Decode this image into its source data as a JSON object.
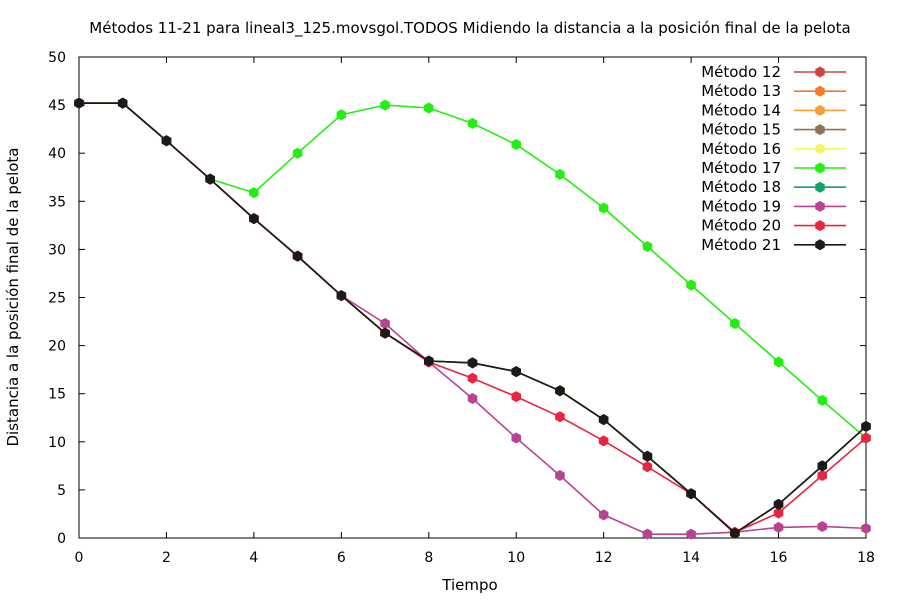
{
  "chart_data": {
    "type": "line",
    "title": "Métodos 11-21 para lineal3_125.movsgol.TODOS Midiendo la distancia a la posición final de la pelota",
    "xlabel": "Tiempo",
    "ylabel": "Distancia a la posición final de la pelota",
    "xlim": [
      0,
      18
    ],
    "ylim": [
      0,
      50
    ],
    "xticks": [
      0,
      2,
      4,
      6,
      8,
      10,
      12,
      14,
      16,
      18
    ],
    "yticks": [
      0,
      5,
      10,
      15,
      20,
      25,
      30,
      35,
      40,
      45,
      50
    ],
    "grid": false,
    "legend_position": "top-right",
    "x": [
      0,
      1,
      2,
      3,
      4,
      5,
      6,
      7,
      8,
      9,
      10,
      11,
      12,
      13,
      14,
      15,
      16,
      17,
      18
    ],
    "series": [
      {
        "name": "Método 12",
        "color": "#c8473e",
        "values": [
          45.2,
          45.2,
          41.3,
          37.3,
          33.2,
          29.3,
          25.2,
          21.3,
          18.4,
          18.2,
          17.3,
          15.3,
          12.3,
          8.5,
          4.6,
          0.5,
          3.5,
          7.5,
          11.6
        ]
      },
      {
        "name": "Método 13",
        "color": "#f07c2a",
        "values": [
          45.2,
          45.2,
          41.3,
          37.3,
          33.2,
          29.3,
          25.2,
          21.3,
          18.4,
          18.2,
          17.3,
          15.3,
          12.3,
          8.5,
          4.6,
          0.5,
          3.5,
          7.5,
          11.6
        ]
      },
      {
        "name": "Método 14",
        "color": "#f59d36",
        "values": [
          45.2,
          45.2,
          41.3,
          37.3,
          33.2,
          29.3,
          25.2,
          21.3,
          18.4,
          18.2,
          17.3,
          15.3,
          12.3,
          8.5,
          4.6,
          0.5,
          3.5,
          7.5,
          11.6
        ]
      },
      {
        "name": "Método 15",
        "color": "#8b7355",
        "values": [
          45.2,
          45.2,
          41.3,
          37.3,
          33.2,
          29.3,
          25.2,
          21.3,
          18.4,
          18.2,
          17.3,
          15.3,
          12.3,
          8.5,
          4.6,
          0.5,
          3.5,
          7.5,
          11.6
        ]
      },
      {
        "name": "Método 16",
        "color": "#f5f56a",
        "values": [
          45.2,
          45.2,
          41.3,
          37.3,
          33.2,
          29.3,
          25.2,
          21.3,
          18.4,
          18.2,
          17.3,
          15.3,
          12.3,
          8.5,
          4.6,
          0.5,
          3.5,
          7.5,
          11.6
        ]
      },
      {
        "name": "Método 17",
        "color": "#22ee11",
        "values": [
          45.2,
          45.2,
          41.3,
          37.3,
          35.9,
          40.0,
          44.0,
          45.0,
          44.7,
          43.1,
          40.9,
          37.8,
          34.3,
          30.3,
          26.3,
          22.3,
          18.3,
          14.3,
          10.4
        ]
      },
      {
        "name": "Método 18",
        "color": "#12a36b",
        "values": [
          45.2,
          45.2,
          41.3,
          37.3,
          33.2,
          29.3,
          25.2,
          21.3,
          18.4,
          18.2,
          17.3,
          15.3,
          12.3,
          8.5,
          4.6,
          0.5,
          3.5,
          7.5,
          11.6
        ]
      },
      {
        "name": "Método 19",
        "color": "#b94393",
        "values": [
          45.2,
          45.2,
          41.3,
          37.3,
          33.2,
          29.3,
          25.2,
          22.3,
          18.3,
          14.5,
          10.4,
          6.5,
          2.4,
          0.4,
          0.4,
          0.6,
          1.1,
          1.2,
          1.0
        ]
      },
      {
        "name": "Método 20",
        "color": "#e8243f",
        "values": [
          45.2,
          45.2,
          41.3,
          37.3,
          33.2,
          29.3,
          25.2,
          21.3,
          18.3,
          16.6,
          14.7,
          12.6,
          10.1,
          7.4,
          4.6,
          0.6,
          2.6,
          6.5,
          10.4
        ]
      },
      {
        "name": "Método 21",
        "color": "#1a1a1a",
        "values": [
          45.2,
          45.2,
          41.3,
          37.3,
          33.2,
          29.3,
          25.2,
          21.3,
          18.4,
          18.2,
          17.3,
          15.3,
          12.3,
          8.5,
          4.6,
          0.5,
          3.5,
          7.5,
          11.6
        ]
      }
    ]
  }
}
